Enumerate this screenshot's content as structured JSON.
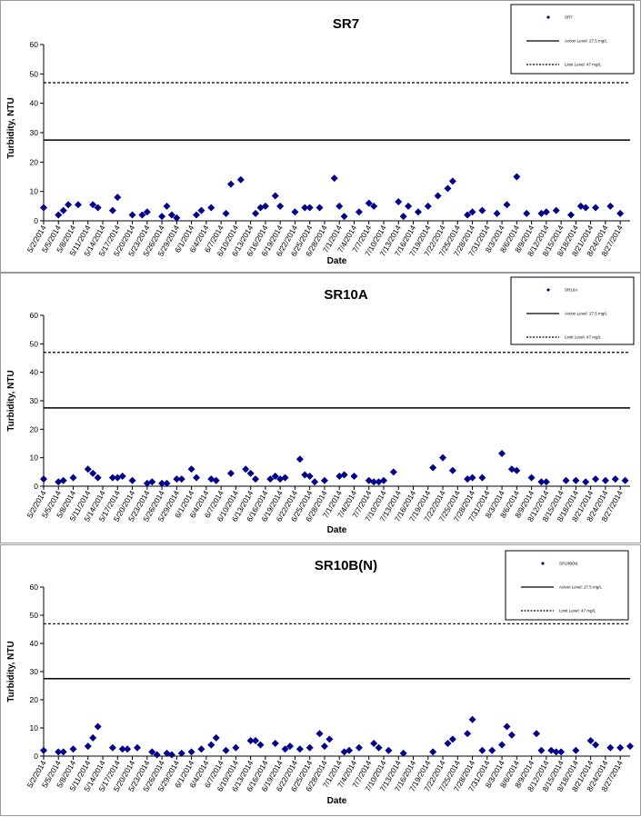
{
  "chart_data": [
    {
      "type": "scatter",
      "title": "SR7",
      "xlabel": "Date",
      "ylabel": "Turbidity, NTU",
      "ylim": [
        0,
        60
      ],
      "yticks": [
        0,
        10,
        20,
        30,
        40,
        50,
        60
      ],
      "xlim": [
        "2014-05-02",
        "2014-08-29"
      ],
      "tick_labels": [
        "5/2/2014",
        "5/5/2014",
        "5/8/2014",
        "5/11/2014",
        "5/14/2014",
        "5/17/2014",
        "5/20/2014",
        "5/23/2014",
        "5/26/2014",
        "5/29/2014",
        "6/1/2014",
        "6/4/2014",
        "6/7/2014",
        "6/10/2014",
        "6/13/2014",
        "6/16/2014",
        "6/19/2014",
        "6/22/2014",
        "6/25/2014",
        "6/28/2014",
        "7/1/2014",
        "7/4/2014",
        "7/7/2014",
        "7/10/2014",
        "7/13/2014",
        "7/16/2014",
        "7/19/2014",
        "7/22/2014",
        "7/25/2014",
        "7/28/2014",
        "7/31/2014",
        "8/3/2014",
        "8/6/2014",
        "8/9/2014",
        "8/12/2014",
        "8/15/2014",
        "8/18/2014",
        "8/21/2014",
        "8/24/2014",
        "8/27/2014"
      ],
      "legend_position": "top-right",
      "grid": false,
      "series": [
        {
          "name": "SR7",
          "marker": "diamond",
          "color": "#00008b",
          "x": [
            "2014-05-02",
            "2014-05-05",
            "2014-05-06",
            "2014-05-07",
            "2014-05-09",
            "2014-05-12",
            "2014-05-13",
            "2014-05-16",
            "2014-05-17",
            "2014-05-20",
            "2014-05-22",
            "2014-05-23",
            "2014-05-26",
            "2014-05-27",
            "2014-05-28",
            "2014-05-29",
            "2014-06-02",
            "2014-06-03",
            "2014-06-05",
            "2014-06-08",
            "2014-06-09",
            "2014-06-11",
            "2014-06-14",
            "2014-06-15",
            "2014-06-16",
            "2014-06-18",
            "2014-06-19",
            "2014-06-22",
            "2014-06-24",
            "2014-06-25",
            "2014-06-27",
            "2014-06-30",
            "2014-07-01",
            "2014-07-02",
            "2014-07-05",
            "2014-07-07",
            "2014-07-08",
            "2014-07-13",
            "2014-07-14",
            "2014-07-15",
            "2014-07-17",
            "2014-07-19",
            "2014-07-21",
            "2014-07-23",
            "2014-07-24",
            "2014-07-27",
            "2014-07-28",
            "2014-07-30",
            "2014-08-02",
            "2014-08-04",
            "2014-08-06",
            "2014-08-08",
            "2014-08-11",
            "2014-08-12",
            "2014-08-14",
            "2014-08-17",
            "2014-08-19",
            "2014-08-20",
            "2014-08-22",
            "2014-08-25",
            "2014-08-27"
          ],
          "y": [
            4.5,
            2,
            3.5,
            5.5,
            5.5,
            5.5,
            4.5,
            3.5,
            8,
            2,
            2,
            3,
            1.5,
            5,
            2,
            1,
            2,
            3.5,
            4.5,
            2.5,
            12.5,
            14,
            2.5,
            4.5,
            5,
            8.5,
            5,
            3,
            4.5,
            4.5,
            4.5,
            14.5,
            5,
            1.5,
            3,
            6,
            5,
            6.5,
            1.5,
            5,
            3,
            5,
            8.5,
            11,
            13.5,
            2,
            3,
            3.5,
            2.5,
            5.5,
            15,
            2.5,
            2.5,
            3,
            3.5,
            2,
            5,
            4.5,
            4.5,
            5,
            2.5
          ]
        },
        {
          "name": "Action Level: 27.5 mg/L",
          "style": "solid",
          "color": "#000000",
          "value": 27.5
        },
        {
          "name": "Limit Level: 47 mg/L",
          "style": "dashed",
          "color": "#000000",
          "value": 47
        }
      ]
    },
    {
      "type": "scatter",
      "title": "SR10A",
      "xlabel": "Date",
      "ylabel": "Turbidity, NTU",
      "ylim": [
        0,
        60
      ],
      "yticks": [
        0,
        10,
        20,
        30,
        40,
        50,
        60
      ],
      "xlim": [
        "2014-05-02",
        "2014-08-29"
      ],
      "tick_labels": [
        "5/2/2014",
        "5/5/2014",
        "5/8/2014",
        "5/11/2014",
        "5/14/2014",
        "5/17/2014",
        "5/20/2014",
        "5/23/2014",
        "5/26/2014",
        "5/29/2014",
        "6/1/2014",
        "6/4/2014",
        "6/7/2014",
        "6/10/2014",
        "6/13/2014",
        "6/16/2014",
        "6/19/2014",
        "6/22/2014",
        "6/25/2014",
        "6/28/2014",
        "7/1/2014",
        "7/4/2014",
        "7/7/2014",
        "7/10/2014",
        "7/13/2014",
        "7/16/2014",
        "7/19/2014",
        "7/22/2014",
        "7/25/2014",
        "7/28/2014",
        "7/31/2014",
        "8/3/2014",
        "8/6/2014",
        "8/9/2014",
        "8/12/2014",
        "8/15/2014",
        "8/18/2014",
        "8/21/2014",
        "8/24/2014",
        "8/27/2014"
      ],
      "legend_position": "top-right",
      "grid": false,
      "series": [
        {
          "name": "SR10A",
          "marker": "diamond",
          "color": "#00008b",
          "x": [
            "2014-05-02",
            "2014-05-05",
            "2014-05-06",
            "2014-05-08",
            "2014-05-11",
            "2014-05-12",
            "2014-05-13",
            "2014-05-16",
            "2014-05-17",
            "2014-05-18",
            "2014-05-20",
            "2014-05-23",
            "2014-05-24",
            "2014-05-26",
            "2014-05-27",
            "2014-05-29",
            "2014-05-30",
            "2014-06-01",
            "2014-06-02",
            "2014-06-05",
            "2014-06-06",
            "2014-06-09",
            "2014-06-12",
            "2014-06-13",
            "2014-06-14",
            "2014-06-17",
            "2014-06-18",
            "2014-06-19",
            "2014-06-20",
            "2014-06-23",
            "2014-06-24",
            "2014-06-25",
            "2014-06-26",
            "2014-06-28",
            "2014-07-01",
            "2014-07-02",
            "2014-07-04",
            "2014-07-07",
            "2014-07-08",
            "2014-07-09",
            "2014-07-10",
            "2014-07-12",
            "2014-07-20",
            "2014-07-22",
            "2014-07-24",
            "2014-07-27",
            "2014-07-28",
            "2014-07-30",
            "2014-08-03",
            "2014-08-05",
            "2014-08-06",
            "2014-08-09",
            "2014-08-11",
            "2014-08-12",
            "2014-08-16",
            "2014-08-18",
            "2014-08-20",
            "2014-08-22",
            "2014-08-24",
            "2014-08-26",
            "2014-08-28"
          ],
          "y": [
            2.5,
            1.5,
            2,
            3,
            6,
            4.5,
            3,
            3,
            3,
            3.5,
            2,
            1,
            1.5,
            1,
            1,
            2.5,
            2.5,
            6,
            3,
            2.5,
            2,
            4.5,
            6,
            4.5,
            2.5,
            2.5,
            3.5,
            2.5,
            3,
            9.5,
            4,
            3.5,
            1.5,
            2,
            3.5,
            4,
            3.5,
            2,
            1.5,
            1.5,
            2,
            5,
            6.5,
            10,
            5.5,
            2.5,
            3,
            3,
            11.5,
            6,
            5.5,
            3,
            1.5,
            1.5,
            2,
            2,
            1.5,
            2.5,
            2,
            2.5,
            2
          ]
        },
        {
          "name": "Action Level: 27.5 mg/L",
          "style": "solid",
          "color": "#000000",
          "value": 27.5
        },
        {
          "name": "Limit Level: 47 mg/L",
          "style": "dashed",
          "color": "#000000",
          "value": 47
        }
      ]
    },
    {
      "type": "scatter",
      "title": "SR10B(N)",
      "xlabel": "Date",
      "ylabel": "Turbidity, NTU",
      "ylim": [
        0,
        60
      ],
      "yticks": [
        0,
        10,
        20,
        30,
        40,
        50,
        60
      ],
      "xlim": [
        "2014-05-02",
        "2014-08-29"
      ],
      "tick_labels": [
        "5/2/2014",
        "5/5/2014",
        "5/8/2014",
        "5/11/2014",
        "5/14/2014",
        "5/17/2014",
        "5/20/2014",
        "5/23/2014",
        "5/26/2014",
        "5/29/2014",
        "6/1/2014",
        "6/4/2014",
        "6/7/2014",
        "6/10/2014",
        "6/13/2014",
        "6/16/2014",
        "6/19/2014",
        "6/22/2014",
        "6/25/2014",
        "6/28/2014",
        "7/1/2014",
        "7/4/2014",
        "7/7/2014",
        "7/10/2014",
        "7/13/2014",
        "7/16/2014",
        "7/19/2014",
        "7/22/2014",
        "7/25/2014",
        "7/28/2014",
        "7/31/2014",
        "8/3/2014",
        "8/6/2014",
        "8/9/2014",
        "8/12/2014",
        "8/15/2014",
        "8/18/2014",
        "8/21/2014",
        "8/24/2014",
        "8/27/2014"
      ],
      "legend_position": "top-right",
      "grid": false,
      "series": [
        {
          "name": "SR10B(N)",
          "marker": "diamond",
          "color": "#00008b",
          "x": [
            "2014-05-02",
            "2014-05-05",
            "2014-05-06",
            "2014-05-08",
            "2014-05-11",
            "2014-05-12",
            "2014-05-13",
            "2014-05-16",
            "2014-05-18",
            "2014-05-19",
            "2014-05-21",
            "2014-05-24",
            "2014-05-25",
            "2014-05-27",
            "2014-05-28",
            "2014-05-30",
            "2014-06-01",
            "2014-06-03",
            "2014-06-05",
            "2014-06-06",
            "2014-06-08",
            "2014-06-10",
            "2014-06-13",
            "2014-06-14",
            "2014-06-15",
            "2014-06-18",
            "2014-06-20",
            "2014-06-21",
            "2014-06-23",
            "2014-06-25",
            "2014-06-27",
            "2014-06-28",
            "2014-06-29",
            "2014-07-02",
            "2014-07-03",
            "2014-07-05",
            "2014-07-08",
            "2014-07-09",
            "2014-07-11",
            "2014-07-14",
            "2014-07-20",
            "2014-07-23",
            "2014-07-24",
            "2014-07-27",
            "2014-07-28",
            "2014-07-30",
            "2014-08-01",
            "2014-08-03",
            "2014-08-04",
            "2014-08-05",
            "2014-08-10",
            "2014-08-11",
            "2014-08-13",
            "2014-08-14",
            "2014-08-15",
            "2014-08-18",
            "2014-08-21",
            "2014-08-22",
            "2014-08-25",
            "2014-08-27",
            "2014-08-29"
          ],
          "y": [
            2,
            1.5,
            1.5,
            2.5,
            3.5,
            6.5,
            10.5,
            3,
            2.5,
            2.5,
            3,
            1.5,
            0.5,
            1,
            0.5,
            1,
            1.5,
            2.5,
            4,
            6.5,
            2,
            3,
            5.5,
            5.5,
            4,
            4.5,
            2.5,
            3.5,
            2.5,
            3,
            8,
            3.5,
            6,
            1.5,
            2,
            3,
            4.5,
            3,
            2,
            1,
            1.5,
            4.5,
            6,
            8,
            13,
            2,
            2,
            4,
            10.5,
            7.5,
            8,
            2,
            2,
            1.5,
            1.5,
            2,
            5.5,
            4,
            3,
            3,
            3.5
          ]
        },
        {
          "name": "Action Level: 27.5 mg/L",
          "style": "solid",
          "color": "#000000",
          "value": 27.5
        },
        {
          "name": "Limit Level: 47 mg/L",
          "style": "dashed",
          "color": "#000000",
          "value": 47
        }
      ]
    }
  ]
}
